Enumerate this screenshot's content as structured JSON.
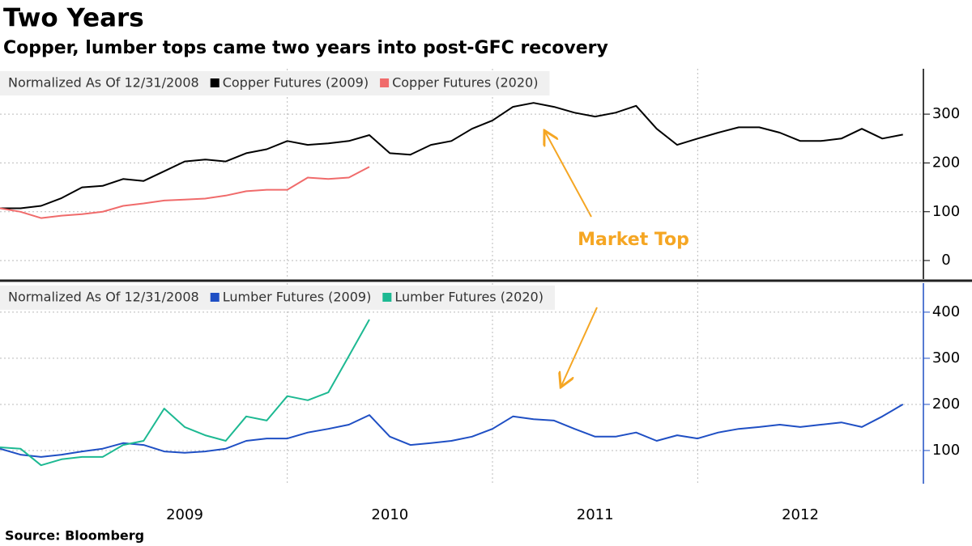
{
  "title": "Two Years",
  "subtitle": "Copper, lumber tops came two years into post-GFC recovery",
  "source": "Source: Bloomberg",
  "annotation": "Market Top",
  "chart_data": [
    {
      "type": "line",
      "legend_title": "Normalized As Of 12/31/2008",
      "axis_color": "#000000",
      "grid": true,
      "xlim": [
        2008.6,
        2013.1
      ],
      "ylim": [
        -38,
        393
      ],
      "yticks": [
        0,
        100,
        200,
        300
      ],
      "series": [
        {
          "name": "Copper Futures (2009)",
          "color": "#000000",
          "x": [
            2008.6,
            2008.7,
            2008.8,
            2008.9,
            2009.0,
            2009.1,
            2009.2,
            2009.3,
            2009.4,
            2009.5,
            2009.6,
            2009.7,
            2009.8,
            2009.9,
            2010.0,
            2010.1,
            2010.2,
            2010.3,
            2010.4,
            2010.5,
            2010.6,
            2010.7,
            2010.8,
            2010.9,
            2011.0,
            2011.1,
            2011.2,
            2011.3,
            2011.4,
            2011.5,
            2011.6,
            2011.7,
            2011.8,
            2011.9,
            2012.0,
            2012.1,
            2012.2,
            2012.3,
            2012.4,
            2012.5,
            2012.6,
            2012.7,
            2012.8,
            2012.9,
            2013.0
          ],
          "values": [
            107,
            107,
            112,
            128,
            150,
            153,
            167,
            163,
            183,
            203,
            207,
            203,
            220,
            228,
            245,
            237,
            240,
            245,
            257,
            220,
            217,
            237,
            245,
            270,
            287,
            315,
            323,
            315,
            303,
            295,
            303,
            317,
            270,
            237,
            250,
            262,
            273,
            273,
            262,
            245,
            245,
            250,
            270,
            250,
            258
          ]
        },
        {
          "name": "Copper Futures (2020)",
          "color": "#f06b6b",
          "x": [
            2008.6,
            2008.7,
            2008.8,
            2008.9,
            2009.0,
            2009.1,
            2009.2,
            2009.3,
            2009.4,
            2009.5,
            2009.6,
            2009.7,
            2009.8,
            2009.9,
            2010.0,
            2010.1,
            2010.2,
            2010.3,
            2010.4
          ],
          "values": [
            107,
            100,
            87,
            92,
            95,
            100,
            112,
            117,
            123,
            125,
            127,
            133,
            142,
            145,
            145,
            170,
            167,
            170,
            192
          ]
        }
      ]
    },
    {
      "type": "line",
      "legend_title": "Normalized As Of 12/31/2008",
      "axis_color": "#1f4fc4",
      "grid": true,
      "xlim": [
        2008.6,
        2013.1
      ],
      "ylim": [
        28,
        463
      ],
      "yticks": [
        100,
        200,
        300,
        400
      ],
      "xticks": [
        {
          "value": 2009.5,
          "label": "2009"
        },
        {
          "value": 2010.5,
          "label": "2010"
        },
        {
          "value": 2011.5,
          "label": "2011"
        },
        {
          "value": 2012.5,
          "label": "2012"
        }
      ],
      "series": [
        {
          "name": "Lumber Futures (2009)",
          "color": "#1f4fc4",
          "x": [
            2008.6,
            2008.7,
            2008.8,
            2008.9,
            2009.0,
            2009.1,
            2009.2,
            2009.3,
            2009.4,
            2009.5,
            2009.6,
            2009.7,
            2009.8,
            2009.9,
            2010.0,
            2010.1,
            2010.2,
            2010.3,
            2010.4,
            2010.5,
            2010.6,
            2010.7,
            2010.8,
            2010.9,
            2011.0,
            2011.1,
            2011.2,
            2011.3,
            2011.4,
            2011.5,
            2011.6,
            2011.7,
            2011.8,
            2011.9,
            2012.0,
            2012.1,
            2012.2,
            2012.3,
            2012.4,
            2012.5,
            2012.6,
            2012.7,
            2012.8,
            2012.9,
            2013.0
          ],
          "values": [
            104,
            91,
            86,
            91,
            98,
            104,
            116,
            112,
            98,
            95,
            98,
            104,
            121,
            126,
            126,
            139,
            147,
            156,
            177,
            130,
            112,
            116,
            121,
            130,
            147,
            174,
            168,
            165,
            147,
            130,
            130,
            139,
            121,
            133,
            126,
            139,
            147,
            151,
            156,
            151,
            156,
            161,
            151,
            174,
            200
          ]
        },
        {
          "name": "Lumber Futures (2020)",
          "color": "#1db992",
          "x": [
            2008.6,
            2008.7,
            2008.8,
            2008.9,
            2009.0,
            2009.1,
            2009.2,
            2009.3,
            2009.4,
            2009.5,
            2009.6,
            2009.7,
            2009.8,
            2009.9,
            2010.0,
            2010.1,
            2010.2,
            2010.3,
            2010.4
          ],
          "values": [
            107,
            104,
            68,
            81,
            86,
            86,
            112,
            121,
            191,
            151,
            133,
            121,
            174,
            165,
            218,
            209,
            226,
            305,
            384
          ]
        }
      ]
    }
  ]
}
